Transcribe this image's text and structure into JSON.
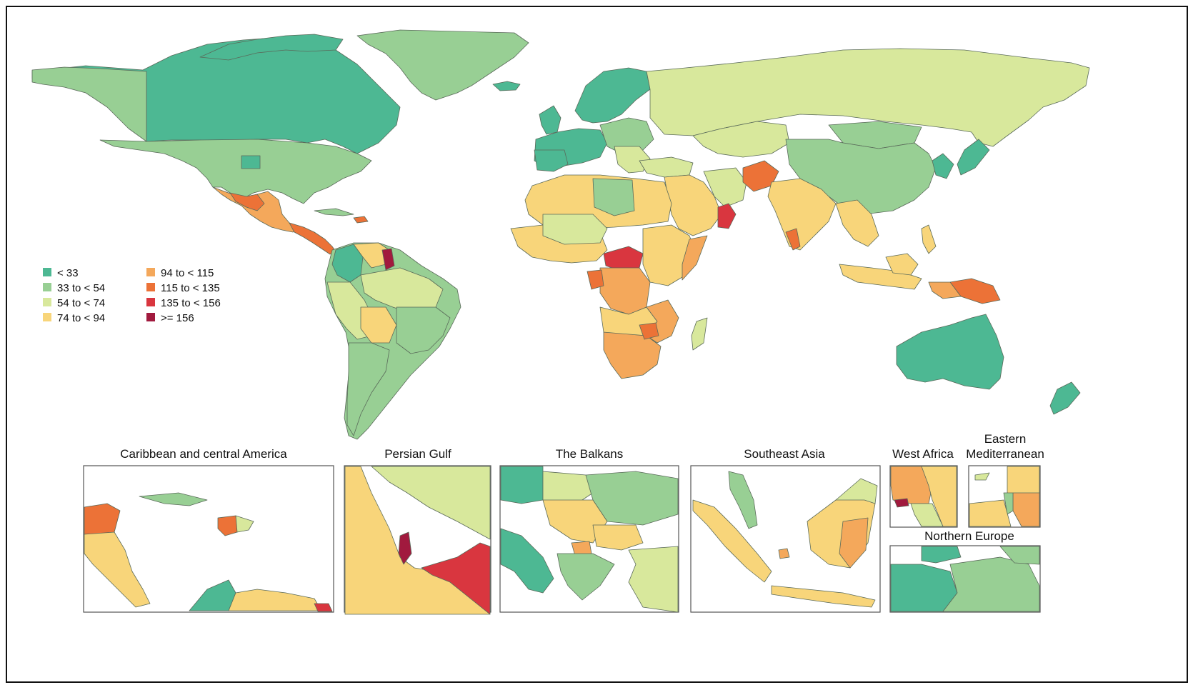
{
  "colors": {
    "c1": "#4DB893",
    "c2": "#98CF94",
    "c3": "#D8E89C",
    "c4": "#F8D57A",
    "c5": "#F4A85B",
    "c6": "#EC7237",
    "c7": "#D9363F",
    "c8": "#A11A3E"
  },
  "legend": [
    {
      "label": "< 33",
      "color": "#4DB893"
    },
    {
      "label": "33 to < 54",
      "color": "#98CF94"
    },
    {
      "label": "54 to < 74",
      "color": "#D8E89C"
    },
    {
      "label": "74 to < 94",
      "color": "#F8D57A"
    },
    {
      "label": "94 to < 115",
      "color": "#F4A85B"
    },
    {
      "label": "115 to < 135",
      "color": "#EC7237"
    },
    {
      "label": "135 to < 156",
      "color": "#D9363F"
    },
    {
      "label": ">= 156",
      "color": "#A11A3E"
    }
  ],
  "insets": {
    "caribbean": "Caribbean and central America",
    "persian_gulf": "Persian Gulf",
    "balkans": "The Balkans",
    "southeast_asia": "Southeast Asia",
    "west_africa": "West Africa",
    "eastern_med_line1": "Eastern",
    "eastern_med_line2": "Mediterranean",
    "northern_europe": "Northern Europe"
  }
}
